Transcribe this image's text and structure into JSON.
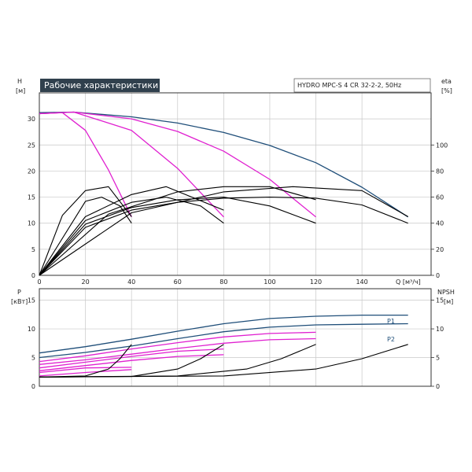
{
  "chart_data": [
    {
      "type": "line",
      "title": "Рабочие характеристики",
      "model": "HYDRO MPC-S 4 CR 32-2-2, 50Hz",
      "left_axis": {
        "label": "H",
        "unit": "[м]",
        "range": [
          0,
          35
        ],
        "ticks": [
          0,
          5,
          10,
          15,
          20,
          25,
          30
        ]
      },
      "right_axis": {
        "label": "eta",
        "unit": "[%]",
        "range": [
          0,
          140
        ],
        "ticks": [
          0,
          20,
          40,
          60,
          80,
          100
        ]
      },
      "x_axis": {
        "label": "Q [м³/ч]",
        "range": [
          0,
          170
        ],
        "ticks": [
          0,
          20,
          40,
          60,
          80,
          100,
          120,
          140
        ]
      },
      "grid": true,
      "series": [
        {
          "role": "H-system-max",
          "color": "#1f4e79",
          "x": [
            0,
            15,
            40,
            60,
            80,
            100,
            120,
            140,
            160
          ],
          "y": [
            31.2,
            31.3,
            30.4,
            29.2,
            27.4,
            24.9,
            21.6,
            16.9,
            11.2
          ]
        },
        {
          "role": "H-1-pump",
          "color": "#e020d0",
          "x": [
            0,
            10,
            20,
            30,
            40
          ],
          "y": [
            31.0,
            31.2,
            27.8,
            20.2,
            11.2
          ]
        },
        {
          "role": "H-2-pumps",
          "color": "#e020d0",
          "x": [
            0,
            15,
            40,
            60,
            80
          ],
          "y": [
            31.0,
            31.3,
            27.8,
            20.5,
            11.2
          ]
        },
        {
          "role": "H-3-pumps",
          "color": "#e020d0",
          "x": [
            0,
            15,
            40,
            60,
            80,
            100,
            120
          ],
          "y": [
            31.0,
            31.3,
            30.0,
            27.6,
            23.8,
            18.4,
            11.2
          ]
        },
        {
          "role": "H-min-pump",
          "color": "#000000",
          "x": [
            0,
            20,
            27,
            35,
            40
          ],
          "y": [
            0,
            14.2,
            15.0,
            13.3,
            10.0
          ]
        },
        {
          "role": "H-min-2",
          "color": "#000000",
          "x": [
            0,
            20,
            40,
            55,
            70,
            80
          ],
          "y": [
            0,
            10.5,
            14.0,
            15.0,
            13.3,
            10.0
          ]
        },
        {
          "role": "H-min-3",
          "color": "#000000",
          "x": [
            0,
            20,
            40,
            60,
            80,
            100,
            120
          ],
          "y": [
            0,
            9.8,
            13.0,
            14.5,
            15.0,
            13.3,
            10.0
          ]
        },
        {
          "role": "H-min-4",
          "color": "#000000",
          "x": [
            0,
            20,
            40,
            60,
            80,
            100,
            120,
            140,
            160
          ],
          "y": [
            0,
            9.2,
            12.5,
            14.0,
            14.8,
            15.0,
            14.8,
            13.5,
            10.0
          ]
        },
        {
          "role": "eta-1",
          "color": "#000000",
          "x": [
            0,
            10,
            20,
            30,
            40
          ],
          "y": [
            0,
            46,
            65,
            68,
            45
          ]
        },
        {
          "role": "eta-2",
          "color": "#000000",
          "x": [
            0,
            20,
            40,
            55,
            80
          ],
          "y": [
            0,
            45,
            62,
            68,
            50
          ]
        },
        {
          "role": "eta-3",
          "color": "#000000",
          "x": [
            0,
            30,
            60,
            80,
            100,
            120
          ],
          "y": [
            0,
            47,
            64,
            68,
            68,
            58
          ]
        },
        {
          "role": "eta-4",
          "color": "#000000",
          "x": [
            0,
            40,
            80,
            110,
            140,
            160
          ],
          "y": [
            0,
            48,
            64,
            68,
            65,
            45
          ]
        }
      ]
    },
    {
      "type": "line",
      "left_axis": {
        "label": "P",
        "unit": "[кВт]",
        "range": [
          0,
          17
        ],
        "ticks": [
          0,
          5,
          10,
          15
        ]
      },
      "right_axis": {
        "label": "NPSH",
        "unit": "[м]",
        "range": [
          0,
          17
        ],
        "ticks": [
          0,
          5,
          10,
          15
        ]
      },
      "x_axis": {
        "range": [
          0,
          170
        ],
        "ticks": [
          0,
          20,
          40,
          60,
          80,
          100,
          120,
          140
        ]
      },
      "grid": true,
      "series": [
        {
          "name": "P1",
          "color": "#1f4e79",
          "x": [
            0,
            20,
            40,
            60,
            80,
            100,
            120,
            140,
            160
          ],
          "y": [
            5.8,
            6.9,
            8.2,
            9.6,
            10.9,
            11.8,
            12.2,
            12.4,
            12.4
          ]
        },
        {
          "name": "P2",
          "color": "#1f4e79",
          "x": [
            0,
            20,
            40,
            60,
            80,
            100,
            120,
            140,
            160
          ],
          "y": [
            5.0,
            5.9,
            7.0,
            8.3,
            9.5,
            10.3,
            10.7,
            10.8,
            10.9
          ]
        },
        {
          "role": "P-pink-a",
          "color": "#e020d0",
          "x": [
            0,
            20,
            40,
            60,
            80,
            100,
            120
          ],
          "y": [
            4.3,
            5.3,
            6.5,
            7.6,
            8.6,
            9.2,
            9.4
          ]
        },
        {
          "role": "P-pink-b",
          "color": "#e020d0",
          "x": [
            0,
            20,
            40,
            60,
            80,
            100,
            120
          ],
          "y": [
            3.8,
            4.6,
            5.6,
            6.6,
            7.5,
            8.1,
            8.3
          ]
        },
        {
          "role": "P-pink-c",
          "color": "#e020d0",
          "x": [
            0,
            20,
            40,
            60,
            80
          ],
          "y": [
            3.2,
            4.2,
            5.2,
            6.1,
            6.5
          ]
        },
        {
          "role": "P-pink-d",
          "color": "#e020d0",
          "x": [
            0,
            20,
            40,
            60,
            80
          ],
          "y": [
            2.7,
            3.6,
            4.5,
            5.2,
            5.5
          ]
        },
        {
          "role": "P-pink-e",
          "color": "#e020d0",
          "x": [
            0,
            20,
            40
          ],
          "y": [
            2.4,
            3.2,
            3.3
          ]
        },
        {
          "role": "P-pink-f",
          "color": "#e020d0",
          "x": [
            0,
            20,
            40
          ],
          "y": [
            1.8,
            2.4,
            2.9
          ]
        },
        {
          "role": "NPSH-1",
          "color": "#000000",
          "x": [
            0,
            20,
            30,
            35,
            40
          ],
          "y": [
            1.6,
            1.8,
            3.0,
            4.8,
            7.3
          ]
        },
        {
          "role": "NPSH-2",
          "color": "#000000",
          "x": [
            0,
            40,
            60,
            70,
            80
          ],
          "y": [
            1.6,
            1.7,
            3.0,
            4.8,
            7.3
          ]
        },
        {
          "role": "NPSH-3",
          "color": "#000000",
          "x": [
            0,
            60,
            90,
            105,
            120
          ],
          "y": [
            1.6,
            1.8,
            3.0,
            4.8,
            7.3
          ]
        },
        {
          "role": "NPSH-4",
          "color": "#000000",
          "x": [
            0,
            80,
            120,
            140,
            160
          ],
          "y": [
            1.6,
            1.8,
            3.0,
            4.8,
            7.3
          ]
        }
      ]
    }
  ]
}
